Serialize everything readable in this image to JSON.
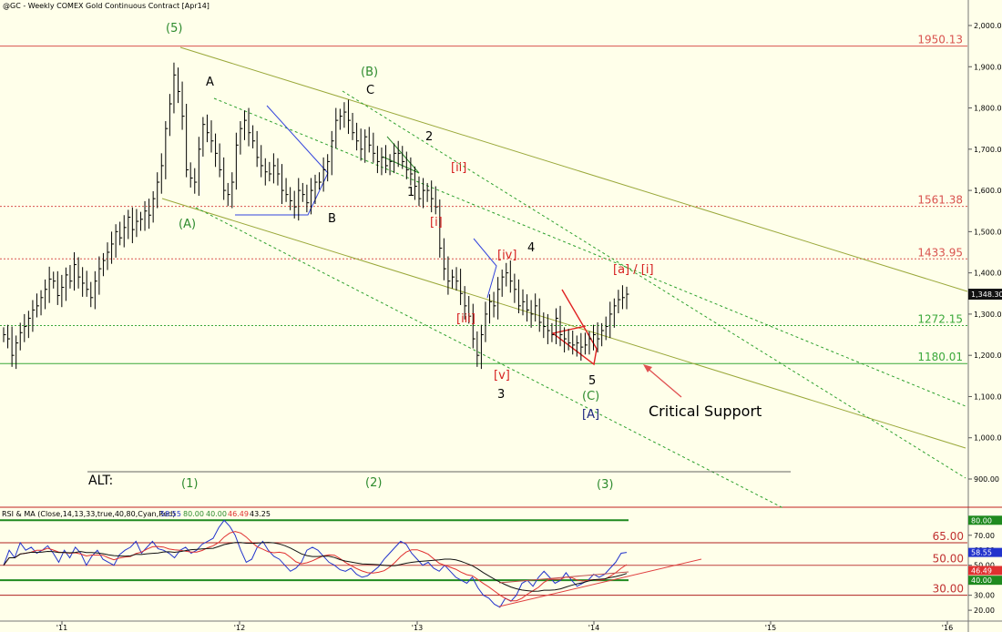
{
  "header": {
    "title": "@GC - Weekly  COMEX  Gold Continuous Contract [Apr14]"
  },
  "colors": {
    "background": "#ffffea",
    "bars": "#000000",
    "channel_olive": "#9aa83a",
    "channel_green_dotted": "#2ca02c",
    "resistance_red": "#d9534f",
    "support_green": "#3aa83a",
    "wave_green": "#2e8b2e",
    "wave_red": "#d62020",
    "wave_blue": "#1a237e",
    "rsi_blue": "#2233cc",
    "rsi_cyan": "#00e5ff",
    "rsi_red": "#e03030",
    "rsi_black": "#111111"
  },
  "chart_data": [
    {
      "type": "line",
      "panel": "price",
      "title": "@GC - Weekly  COMEX  Gold Continuous Contract [Apr14]",
      "y_ticks": [
        "2,000.00",
        "1,900.00",
        "1,800.00",
        "1,700.00",
        "1,600.00",
        "1,500.00",
        "1,400.00",
        "1,300.00",
        "1,200.00",
        "1,100.00",
        "1,000.00",
        "900.00"
      ],
      "ylim": [
        835,
        2030
      ],
      "x_ticks": [
        "'11",
        "'12",
        "'13",
        "'14",
        "'15",
        "'16"
      ],
      "last_price": "1,348.30",
      "horizontal_levels": [
        {
          "label": "1950.13",
          "value": 1950.13,
          "style": "solid",
          "color": "red"
        },
        {
          "label": "1561.38",
          "value": 1561.38,
          "style": "dotted",
          "color": "red"
        },
        {
          "label": "1433.95",
          "value": 1433.95,
          "style": "dotted",
          "color": "red"
        },
        {
          "label": "1272.15",
          "value": 1272.15,
          "style": "dotted",
          "color": "green"
        },
        {
          "label": "1180.01",
          "value": 1180.01,
          "style": "solid",
          "color": "green"
        }
      ],
      "weekly_closes": {
        "start": "2010-07",
        "values": [
          1250,
          1240,
          1200,
          1230,
          1255,
          1270,
          1290,
          1310,
          1320,
          1340,
          1360,
          1385,
          1380,
          1345,
          1365,
          1395,
          1380,
          1420,
          1390,
          1375,
          1360,
          1340,
          1380,
          1410,
          1430,
          1450,
          1470,
          1500,
          1485,
          1510,
          1535,
          1505,
          1525,
          1530,
          1550,
          1540,
          1580,
          1620,
          1660,
          1750,
          1810,
          1880,
          1840,
          1780,
          1650,
          1630,
          1620,
          1700,
          1760,
          1740,
          1720,
          1690,
          1650,
          1600,
          1590,
          1620,
          1710,
          1750,
          1770,
          1740,
          1720,
          1680,
          1660,
          1645,
          1640,
          1660,
          1640,
          1600,
          1590,
          1575,
          1560,
          1600,
          1590,
          1570,
          1600,
          1620,
          1620,
          1650,
          1670,
          1720,
          1770,
          1780,
          1790,
          1770,
          1740,
          1720,
          1700,
          1730,
          1710,
          1690,
          1670,
          1680,
          1660,
          1670,
          1690,
          1690,
          1670,
          1650,
          1640,
          1610,
          1580,
          1600,
          1600,
          1580,
          1560,
          1460,
          1410,
          1380,
          1390,
          1380,
          1350,
          1320,
          1295,
          1240,
          1200,
          1250,
          1300,
          1330,
          1320,
          1360,
          1390,
          1400,
          1380,
          1360,
          1320,
          1330,
          1310,
          1300,
          1320,
          1280,
          1270,
          1260,
          1250,
          1290,
          1250,
          1240,
          1230,
          1225,
          1230,
          1220,
          1225,
          1240,
          1250,
          1240,
          1260,
          1270,
          1300,
          1320,
          1335,
          1340,
          1348.3
        ]
      },
      "wave_labels": [
        {
          "text": "(5)",
          "color": "green"
        },
        {
          "text": "A",
          "color": "black"
        },
        {
          "text": "(B)",
          "color": "green"
        },
        {
          "text": "C",
          "color": "black"
        },
        {
          "text": "2",
          "color": "black"
        },
        {
          "text": "[ii]",
          "color": "red"
        },
        {
          "text": "1",
          "color": "black"
        },
        {
          "text": "B",
          "color": "black"
        },
        {
          "text": "(A)",
          "color": "green"
        },
        {
          "text": "[i]",
          "color": "red"
        },
        {
          "text": "[iv]",
          "color": "red"
        },
        {
          "text": "4",
          "color": "black"
        },
        {
          "text": "[a] / [i]",
          "color": "red"
        },
        {
          "text": "[iii]",
          "color": "red"
        },
        {
          "text": "[v]",
          "color": "red"
        },
        {
          "text": "3",
          "color": "black"
        },
        {
          "text": "5",
          "color": "black"
        },
        {
          "text": "(C)",
          "color": "green"
        },
        {
          "text": "[A]",
          "color": "blue"
        }
      ],
      "annotation": "Critical Support",
      "alt_row": {
        "label": "ALT:",
        "items": [
          "(1)",
          "(2)",
          "(3)"
        ]
      }
    },
    {
      "type": "line",
      "panel": "rsi",
      "legend": {
        "label": "RSI & MA (Close,14,13,33,true,40,80,Cyan,Red)",
        "values": [
          "58.55",
          "80.00",
          "40.00",
          "46.49",
          "43.25"
        ]
      },
      "ylim": [
        14,
        82
      ],
      "y_ticks": [
        "80.00",
        "70.00",
        "60.00",
        "50.00",
        "40.00",
        "30.00",
        "20.00"
      ],
      "levels": [
        {
          "label": "80.00",
          "value": 80
        },
        {
          "label": "65.00",
          "value": 65
        },
        {
          "label": "50.00",
          "value": 50
        },
        {
          "label": "40.00",
          "value": 40
        },
        {
          "label": "30.00",
          "value": 30
        }
      ],
      "last_values": [
        "58.55",
        "46.49",
        "40.00"
      ],
      "series": [
        {
          "name": "RSI",
          "values": [
            50,
            60,
            55,
            65,
            60,
            62,
            58,
            60,
            63,
            58,
            52,
            60,
            55,
            62,
            58,
            50,
            56,
            60,
            54,
            52,
            50,
            57,
            60,
            62,
            66,
            58,
            62,
            66,
            61,
            60,
            58,
            55,
            60,
            62,
            58,
            60,
            64,
            66,
            68,
            75,
            80,
            76,
            70,
            60,
            52,
            54,
            62,
            66,
            60,
            56,
            54,
            50,
            46,
            48,
            52,
            60,
            62,
            60,
            56,
            52,
            50,
            47,
            46,
            48,
            44,
            42,
            43,
            46,
            49,
            54,
            58,
            62,
            66,
            64,
            58,
            54,
            50,
            52,
            48,
            46,
            50,
            46,
            42,
            40,
            38,
            42,
            35,
            30,
            28,
            24,
            22,
            28,
            26,
            30,
            38,
            40,
            36,
            42,
            46,
            42,
            38,
            40,
            45,
            40,
            36,
            38,
            40,
            44,
            42,
            44,
            48,
            52,
            58,
            58.55
          ]
        },
        {
          "name": "MA Cyan",
          "values": []
        },
        {
          "name": "MA Red",
          "values": []
        }
      ]
    }
  ]
}
